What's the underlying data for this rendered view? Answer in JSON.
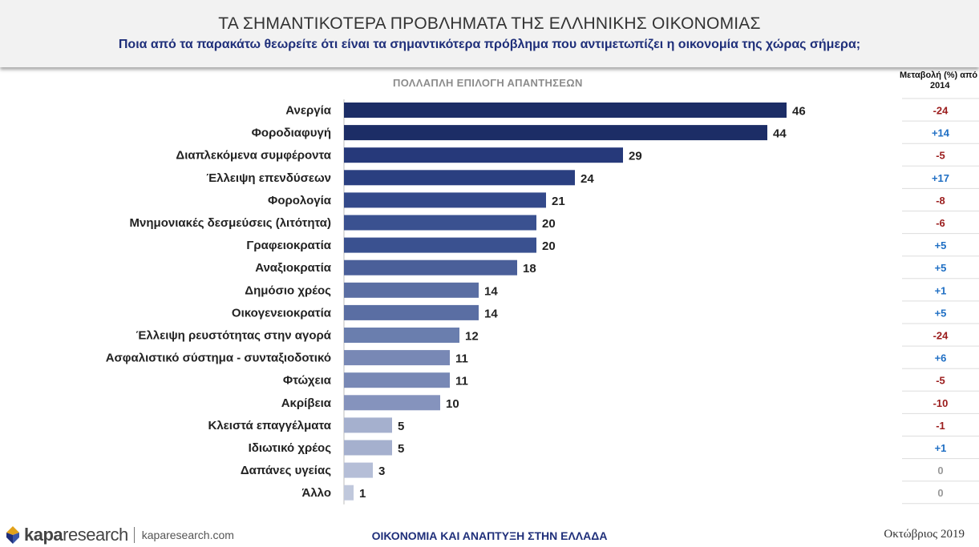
{
  "header": {
    "title": "ΤΑ ΣΗΜΑΝΤΙΚΟΤΕΡΑ ΠΡΟΒΛΗΜΑΤΑ ΤΗΣ ΕΛΛΗΝΙΚΗΣ ΟΙΚΟΝΟΜΙΑΣ",
    "subtitle": "Ποια από τα παρακάτω θεωρείτε ότι είναι τα σημαντικότερα πρόβλημα που αντιμετωπίζει η οικονομία της χώρας σήμερα;"
  },
  "note": "ΠΟΛΛΑΠΛΗ ΕΠΙΛΟΓΗ ΑΠΑΝΤΗΣΕΩΝ",
  "change_header": {
    "line1": "Μεταβολή (%) από",
    "line2": "2014"
  },
  "colors": {
    "positive": "#1f6fc4",
    "negative": "#9b1c1c",
    "neutral": "#999999"
  },
  "chart_data": {
    "type": "bar",
    "orientation": "horizontal",
    "categories": [
      "Ανεργία",
      "Φοροδιαφυγή",
      "Διαπλεκόμενα συμφέροντα",
      "Έλλειψη επενδύσεων",
      "Φορολογία",
      "Μνημονιακές δεσμεύσεις (λιτότητα)",
      "Γραφειοκρατία",
      "Αναξιοκρατία",
      "Δημόσιο χρέος",
      "Οικογενειοκρατία",
      "Έλλειψη ρευστότητας στην αγορά",
      "Ασφαλιστικό σύστημα - συνταξιοδοτικό",
      "Φτώχεια",
      "Ακρίβεια",
      "Κλειστά επαγγέλματα",
      "Ιδιωτικό χρέος",
      "Δαπάνες υγείας",
      "Άλλο"
    ],
    "values": [
      46,
      44,
      29,
      24,
      21,
      20,
      20,
      18,
      14,
      14,
      12,
      11,
      11,
      10,
      5,
      5,
      3,
      1
    ],
    "value_labels": [
      "46",
      "44",
      "29",
      "24",
      "21",
      "20",
      "20",
      "18",
      "14",
      "14",
      "12",
      "11",
      "11",
      "10",
      "5",
      "5",
      "3",
      "1"
    ],
    "change_labels": [
      "-24",
      "+14",
      "-5",
      "+17",
      "-8",
      "-6",
      "+5",
      "+5",
      "+1",
      "+5",
      "-24",
      "+6",
      "-5",
      "-10",
      "-1",
      "+1",
      "0",
      "0"
    ],
    "bar_colors": [
      "#1c2d66",
      "#1c2d66",
      "#26397a",
      "#2a3f80",
      "#33498a",
      "#3a5190",
      "#3a5190",
      "#4a5f99",
      "#5a6ea3",
      "#5a6ea3",
      "#6a7eae",
      "#7888b5",
      "#7888b5",
      "#8593bd",
      "#a5b0ce",
      "#a5b0ce",
      "#b5bed7",
      "#c0c8dc"
    ],
    "xlim": [
      0,
      50
    ]
  },
  "footer": {
    "brand_bold": "kapa",
    "brand_light": "research",
    "url": "kaparesearch.com",
    "center": "ΟΙΚΟΝΟΜΙΑ ΚΑΙ ΑΝΑΠΤΥΞΗ ΣΤΗΝ ΕΛΛΑΔΑ",
    "date": "Οκτώβριος 2019"
  }
}
